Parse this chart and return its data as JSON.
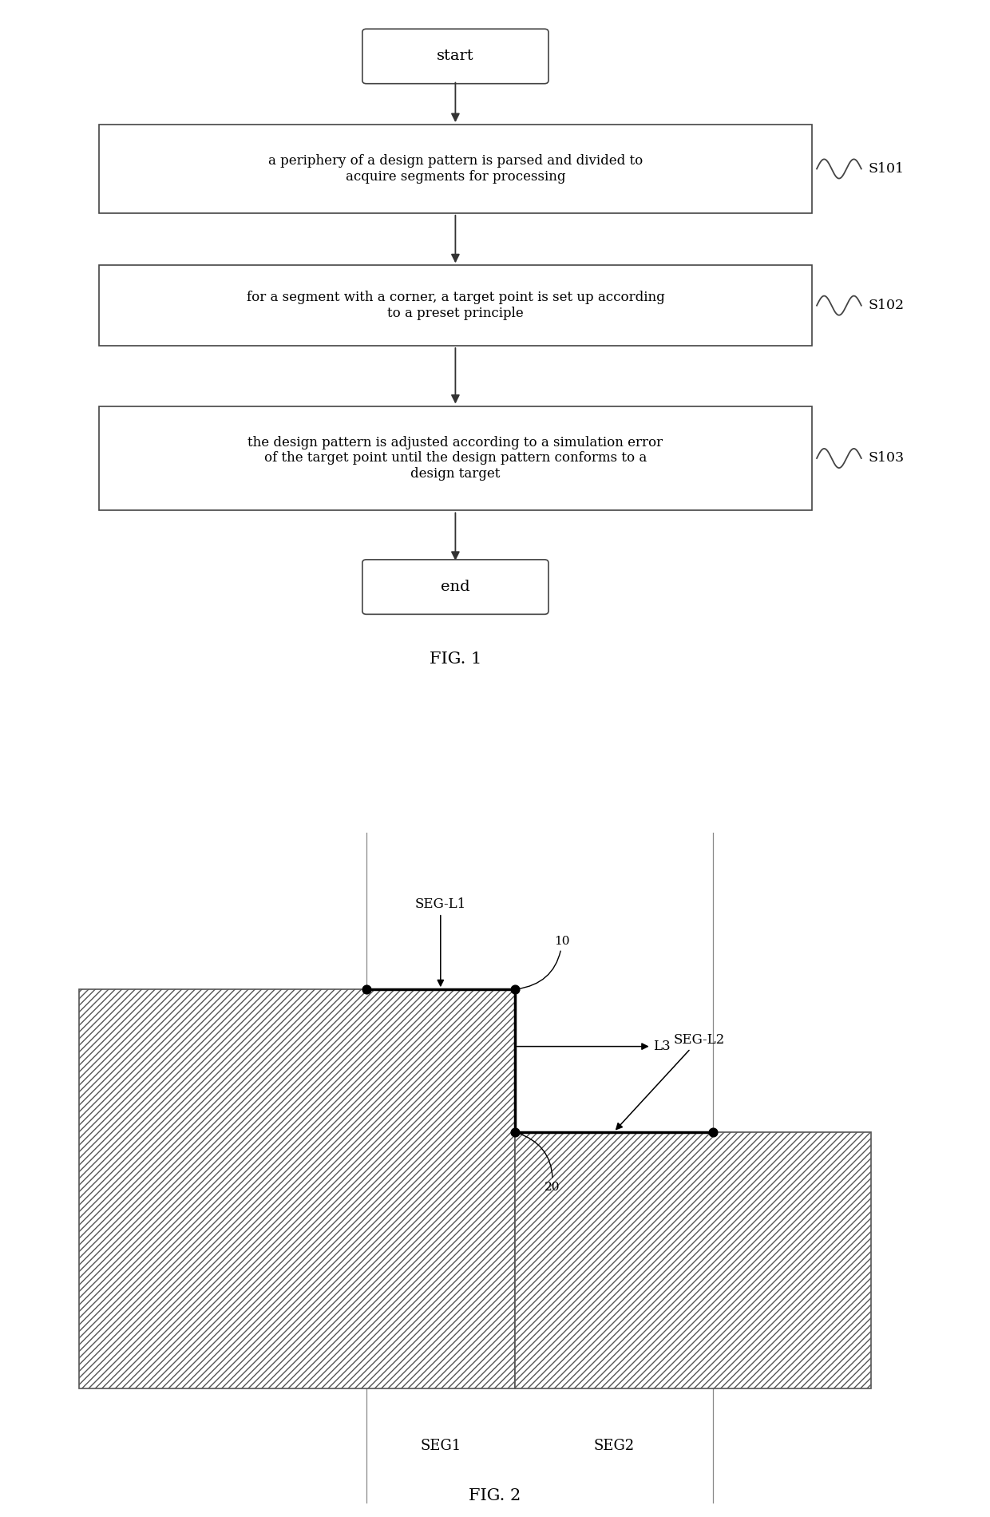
{
  "fig1": {
    "title": "FIG. 1",
    "start_text": "start",
    "end_text": "end",
    "boxes": [
      {
        "text": "a periphery of a design pattern is parsed and divided to\nacquire segments for processing",
        "label": "S101"
      },
      {
        "text": "for a segment with a corner, a target point is set up according\nto a preset principle",
        "label": "S102"
      },
      {
        "text": "the design pattern is adjusted according to a simulation error\nof the target point until the design pattern conforms to a\ndesign target",
        "label": "S103"
      }
    ]
  },
  "fig2": {
    "title": "FIG. 2",
    "seg1_label": "SEG1",
    "seg2_label": "SEG2",
    "segl1_label": "SEG-L1",
    "segl2_label": "SEG-L2",
    "l3_label": "L3",
    "pt10_label": "10",
    "pt20_label": "20"
  }
}
